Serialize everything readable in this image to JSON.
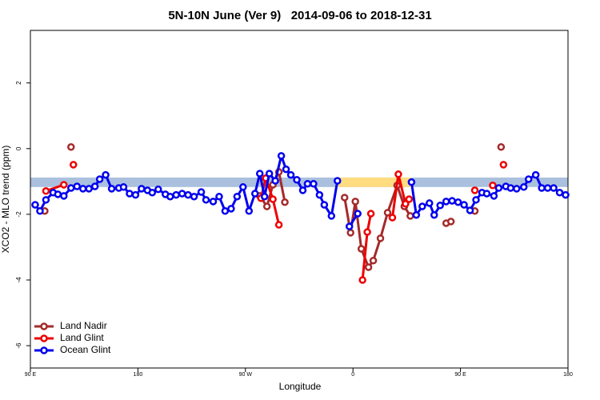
{
  "chart_data": {
    "type": "line",
    "title": "5N-10N June (Ver 9)   2014-09-06 to 2018-12-31",
    "x_label": "Longitude",
    "y_label": "XCO2 - MLO trend (ppm)",
    "xlim": [
      90,
      540
    ],
    "ylim": [
      -6.68,
      3.6
    ],
    "xticks": [
      {
        "value": 90,
        "label": "90 E"
      },
      180,
      {
        "value": 270,
        "label": "90 W"
      },
      {
        "value": 360,
        "label": "0"
      },
      {
        "value": 450,
        "label": "90 E"
      },
      {
        "value": 540,
        "label": "180"
      }
    ],
    "yticks": [
      -6,
      -4,
      -2,
      0,
      2
    ],
    "band": {
      "ylim": [
        -1.17,
        -0.88
      ],
      "color": "#aac0de"
    },
    "highlight": {
      "xlim": [
        346,
        409
      ],
      "color": "#ffdc80"
    },
    "legend": "bottom-left",
    "series": [
      {
        "name": "Land Nadir",
        "color": "#a52a2a",
        "x": [
          102,
          null,
          124,
          null,
          282,
          288,
          293,
          298,
          303,
          null,
          353,
          358,
          362,
          367,
          373,
          377,
          383,
          389,
          397,
          403,
          408,
          null,
          438,
          442,
          null,
          462,
          null,
          484
        ],
        "values": [
          -1.9,
          null,
          0.05,
          null,
          -1.44,
          -1.76,
          -1.1,
          -0.71,
          -1.63,
          null,
          -1.49,
          -2.56,
          -1.61,
          -3.05,
          -3.61,
          -3.41,
          -2.73,
          -1.95,
          -1.12,
          -1.76,
          -2.05,
          null,
          -2.27,
          -2.22,
          null,
          -1.9,
          null,
          0.05
        ]
      },
      {
        "name": "Land Glint",
        "color": "#ee0000",
        "x": [
          103,
          118,
          null,
          126,
          null,
          283,
          287,
          293,
          298,
          null,
          368,
          372,
          375,
          null,
          393,
          398,
          404,
          407,
          null,
          462,
          null,
          477,
          null,
          486
        ],
        "values": [
          -1.29,
          -1.1,
          null,
          -0.49,
          null,
          -1.51,
          -0.9,
          -1.54,
          -2.32,
          null,
          -4.0,
          -2.54,
          -1.98,
          null,
          -2.1,
          -0.78,
          -1.68,
          -1.54,
          null,
          -1.27,
          null,
          -1.12,
          null,
          -0.49
        ]
      },
      {
        "name": "Ocean Glint",
        "color": "#0000ee",
        "x": [
          94,
          98,
          103,
          109,
          113,
          118,
          124,
          129,
          134,
          139,
          144,
          148,
          153,
          158,
          164,
          168,
          173,
          178,
          183,
          188,
          192,
          197,
          203,
          207,
          212,
          217,
          222,
          227,
          233,
          237,
          243,
          248,
          253,
          258,
          263,
          268,
          273,
          278,
          282,
          286,
          290,
          295,
          300,
          304,
          308,
          313,
          318,
          322,
          327,
          332,
          336,
          342,
          347,
          null,
          357,
          364,
          null,
          409,
          413,
          418,
          424,
          428,
          433,
          438,
          443,
          448,
          453,
          458,
          463,
          468,
          472,
          478,
          482,
          488,
          492,
          497,
          503,
          507,
          513,
          518,
          523,
          528,
          533,
          538
        ],
        "values": [
          -1.71,
          -1.9,
          -1.56,
          -1.34,
          -1.39,
          -1.44,
          -1.2,
          -1.15,
          -1.22,
          -1.22,
          -1.15,
          -0.93,
          -0.8,
          -1.22,
          -1.2,
          -1.17,
          -1.37,
          -1.41,
          -1.22,
          -1.27,
          -1.34,
          -1.24,
          -1.39,
          -1.46,
          -1.41,
          -1.37,
          -1.41,
          -1.46,
          -1.32,
          -1.56,
          -1.61,
          -1.46,
          -1.9,
          -1.83,
          -1.46,
          -1.17,
          -1.9,
          -1.37,
          -0.76,
          -1.46,
          -0.76,
          -0.98,
          -0.22,
          -0.63,
          -0.8,
          -0.95,
          -1.27,
          -1.07,
          -1.07,
          -1.41,
          -1.71,
          -2.05,
          -0.98,
          null,
          -2.37,
          -1.98,
          null,
          -1.02,
          -2.02,
          -1.76,
          -1.66,
          -2.02,
          -1.73,
          -1.61,
          -1.59,
          -1.63,
          -1.71,
          -1.88,
          -1.56,
          -1.34,
          -1.37,
          -1.44,
          -1.2,
          -1.15,
          -1.2,
          -1.22,
          -1.17,
          -0.93,
          -0.8,
          -1.2,
          -1.2,
          -1.2,
          -1.34,
          -1.41
        ]
      }
    ]
  }
}
